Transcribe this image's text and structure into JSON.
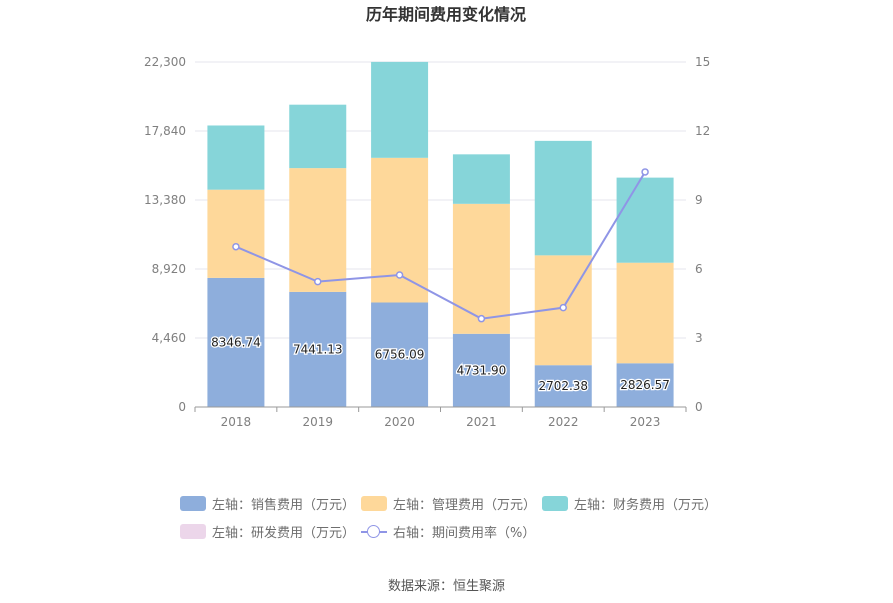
{
  "chart_data": {
    "type": "bar",
    "title": "历年期间费用变化情况",
    "categories": [
      "2018",
      "2019",
      "2020",
      "2021",
      "2022",
      "2023"
    ],
    "series": [
      {
        "name": "左轴：销售费用（万元）",
        "color": "#8eaedc",
        "values": [
          8346.74,
          7441.13,
          6756.09,
          4731.9,
          2702.38,
          2826.57
        ],
        "labels": [
          "8346.74",
          "7441.13",
          "6756.09",
          "4731.90",
          "2702.38",
          "2826.57"
        ]
      },
      {
        "name": "左轴：管理费用（万元）",
        "color": "#fed89a",
        "values": [
          5700,
          8000,
          9350,
          8400,
          7100,
          6500
        ]
      },
      {
        "name": "左轴：财务费用（万元）",
        "color": "#86d5d9",
        "values": [
          4150,
          4100,
          6200,
          3200,
          7400,
          5500
        ]
      },
      {
        "name": "左轴：研发费用（万元）",
        "color": "#ecd6ea",
        "values": [
          0,
          0,
          0,
          0,
          0,
          0
        ]
      }
    ],
    "line": {
      "name": "右轴：期间费用率（%）",
      "color": "#8f95e6",
      "values": [
        6.97,
        5.45,
        5.74,
        3.84,
        4.32,
        10.22
      ]
    },
    "y_left": {
      "min": 0,
      "max": 22300,
      "ticks": [
        "0",
        "4,460",
        "8,920",
        "13,380",
        "17,840",
        "22,300"
      ]
    },
    "y_right": {
      "min": 0,
      "max": 15,
      "ticks": [
        "0",
        "3",
        "6",
        "9",
        "12",
        "15"
      ]
    }
  },
  "legend": {
    "sales": "左轴：销售费用（万元）",
    "admin": "左轴：管理费用（万元）",
    "finance": "左轴：财务费用（万元）",
    "rd": "左轴：研发费用（万元）",
    "rate": "右轴：期间费用率（%）"
  },
  "source": "数据来源：恒生聚源"
}
